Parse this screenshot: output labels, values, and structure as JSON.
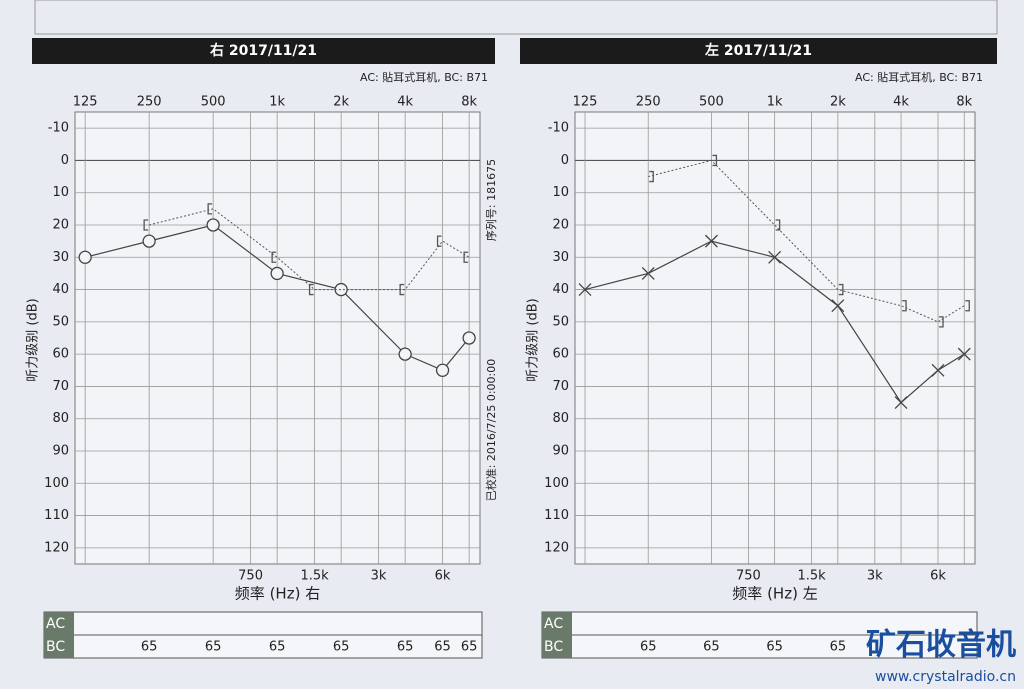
{
  "chart_data": [
    {
      "type": "line",
      "title": "右 2017/11/21",
      "subtitle": "AC: 貼耳式耳机, BC: B71",
      "x_label": "频率 (Hz) 右",
      "y_label": "听力级别 (dB)",
      "xscale": "log",
      "y_inverted": true,
      "grid": true,
      "xlim": [
        112,
        9000
      ],
      "xticks": [
        125,
        250,
        500,
        {
          "value": 1000,
          "label": "1k"
        },
        {
          "value": 2000,
          "label": "2k"
        },
        {
          "value": 4000,
          "label": "4k"
        },
        {
          "value": 8000,
          "label": "8k"
        },
        750,
        {
          "value": 1500,
          "label": "1.5k"
        },
        {
          "value": 3000,
          "label": "3k"
        },
        {
          "value": 6000,
          "label": "6k"
        }
      ],
      "ylim": [
        -15,
        125
      ],
      "yticks": [
        -10,
        0,
        10,
        20,
        30,
        40,
        50,
        60,
        70,
        80,
        90,
        100,
        110,
        120
      ],
      "series": [
        {
          "name": "AC",
          "color": "#444444",
          "marker": "circle",
          "x": [
            125,
            250,
            500,
            1000,
            2000,
            4000,
            6000,
            8000
          ],
          "values": [
            30,
            25,
            20,
            35,
            40,
            60,
            65,
            55
          ]
        },
        {
          "name": "BC",
          "color": "#555555",
          "marker": "bracket-left",
          "x": [
            250,
            500,
            1000,
            1500,
            4000,
            6000,
            8000
          ],
          "values": [
            20,
            15,
            30,
            40,
            40,
            25,
            30
          ]
        }
      ],
      "bc_table": {
        "x": [
          250,
          500,
          1000,
          2000,
          4000,
          6000,
          8000
        ],
        "values": [
          "65",
          "65",
          "65",
          "65",
          "65",
          "65",
          "65"
        ]
      },
      "side_notes": [
        "序列号: 181675",
        "已校准: 2016/7/25 0:00:00"
      ]
    },
    {
      "type": "line",
      "title": "左 2017/11/21",
      "subtitle": "AC: 貼耳式耳机, BC: B71",
      "x_label": "频率 (Hz) 左",
      "y_label": "听力级别 (dB)",
      "xscale": "log",
      "y_inverted": true,
      "grid": true,
      "xlim": [
        112,
        9000
      ],
      "xticks": [
        125,
        250,
        500,
        {
          "value": 1000,
          "label": "1k"
        },
        {
          "value": 2000,
          "label": "2k"
        },
        {
          "value": 4000,
          "label": "4k"
        },
        {
          "value": 8000,
          "label": "8k"
        },
        750,
        {
          "value": 1500,
          "label": "1.5k"
        },
        {
          "value": 3000,
          "label": "3k"
        },
        {
          "value": 6000,
          "label": "6k"
        }
      ],
      "ylim": [
        -15,
        125
      ],
      "yticks": [
        -10,
        0,
        10,
        20,
        30,
        40,
        50,
        60,
        70,
        80,
        90,
        100,
        110,
        120
      ],
      "series": [
        {
          "name": "AC",
          "color": "#444444",
          "marker": "x",
          "x": [
            125,
            250,
            500,
            1000,
            2000,
            4000,
            6000,
            8000
          ],
          "values": [
            40,
            35,
            25,
            30,
            45,
            75,
            65,
            60
          ]
        },
        {
          "name": "BC",
          "color": "#555555",
          "marker": "bracket-right",
          "x": [
            250,
            500,
            1000,
            2000,
            4000,
            6000,
            8000
          ],
          "values": [
            5,
            0,
            20,
            40,
            45,
            50,
            45
          ]
        }
      ],
      "bc_table": {
        "x": [
          250,
          500,
          1000,
          2000
        ],
        "values": [
          "65",
          "65",
          "65",
          "65"
        ]
      }
    }
  ],
  "watermark": {
    "title": "矿石收音机",
    "url": "www.crystalradio.cn"
  }
}
